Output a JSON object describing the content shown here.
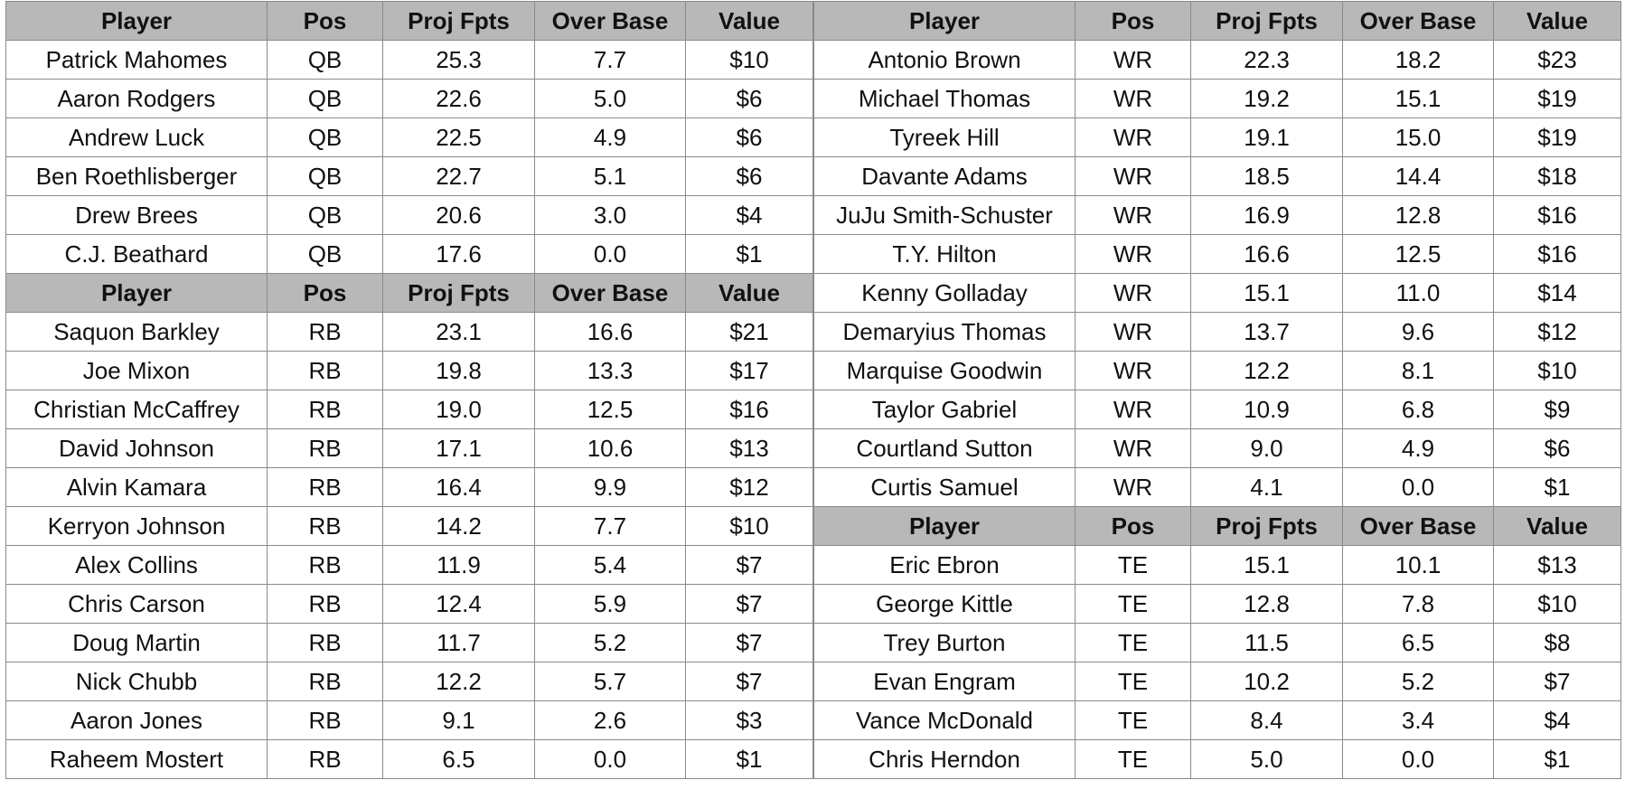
{
  "panels": [
    {
      "sections": [
        {
          "columns": [
            "Player",
            "Pos",
            "Proj Fpts",
            "Over Base",
            "Value"
          ],
          "rows": [
            [
              "Patrick Mahomes",
              "QB",
              "25.3",
              "7.7",
              "$10"
            ],
            [
              "Aaron Rodgers",
              "QB",
              "22.6",
              "5.0",
              "$6"
            ],
            [
              "Andrew Luck",
              "QB",
              "22.5",
              "4.9",
              "$6"
            ],
            [
              "Ben Roethlisberger",
              "QB",
              "22.7",
              "5.1",
              "$6"
            ],
            [
              "Drew Brees",
              "QB",
              "20.6",
              "3.0",
              "$4"
            ],
            [
              "C.J. Beathard",
              "QB",
              "17.6",
              "0.0",
              "$1"
            ]
          ]
        },
        {
          "columns": [
            "Player",
            "Pos",
            "Proj Fpts",
            "Over Base",
            "Value"
          ],
          "rows": [
            [
              "Saquon Barkley",
              "RB",
              "23.1",
              "16.6",
              "$21"
            ],
            [
              "Joe Mixon",
              "RB",
              "19.8",
              "13.3",
              "$17"
            ],
            [
              "Christian McCaffrey",
              "RB",
              "19.0",
              "12.5",
              "$16"
            ],
            [
              "David Johnson",
              "RB",
              "17.1",
              "10.6",
              "$13"
            ],
            [
              "Alvin Kamara",
              "RB",
              "16.4",
              "9.9",
              "$12"
            ],
            [
              "Kerryon Johnson",
              "RB",
              "14.2",
              "7.7",
              "$10"
            ],
            [
              "Alex Collins",
              "RB",
              "11.9",
              "5.4",
              "$7"
            ],
            [
              "Chris Carson",
              "RB",
              "12.4",
              "5.9",
              "$7"
            ],
            [
              "Doug Martin",
              "RB",
              "11.7",
              "5.2",
              "$7"
            ],
            [
              "Nick Chubb",
              "RB",
              "12.2",
              "5.7",
              "$7"
            ],
            [
              "Aaron Jones",
              "RB",
              "9.1",
              "2.6",
              "$3"
            ],
            [
              "Raheem Mostert",
              "RB",
              "6.5",
              "0.0",
              "$1"
            ]
          ]
        }
      ]
    },
    {
      "sections": [
        {
          "columns": [
            "Player",
            "Pos",
            "Proj Fpts",
            "Over Base",
            "Value"
          ],
          "rows": [
            [
              "Antonio Brown",
              "WR",
              "22.3",
              "18.2",
              "$23"
            ],
            [
              "Michael Thomas",
              "WR",
              "19.2",
              "15.1",
              "$19"
            ],
            [
              "Tyreek Hill",
              "WR",
              "19.1",
              "15.0",
              "$19"
            ],
            [
              "Davante Adams",
              "WR",
              "18.5",
              "14.4",
              "$18"
            ],
            [
              "JuJu Smith-Schuster",
              "WR",
              "16.9",
              "12.8",
              "$16"
            ],
            [
              "T.Y. Hilton",
              "WR",
              "16.6",
              "12.5",
              "$16"
            ],
            [
              "Kenny Golladay",
              "WR",
              "15.1",
              "11.0",
              "$14"
            ],
            [
              "Demaryius Thomas",
              "WR",
              "13.7",
              "9.6",
              "$12"
            ],
            [
              "Marquise Goodwin",
              "WR",
              "12.2",
              "8.1",
              "$10"
            ],
            [
              "Taylor Gabriel",
              "WR",
              "10.9",
              "6.8",
              "$9"
            ],
            [
              "Courtland Sutton",
              "WR",
              "9.0",
              "4.9",
              "$6"
            ],
            [
              "Curtis Samuel",
              "WR",
              "4.1",
              "0.0",
              "$1"
            ]
          ]
        },
        {
          "columns": [
            "Player",
            "Pos",
            "Proj Fpts",
            "Over Base",
            "Value"
          ],
          "rows": [
            [
              "Eric Ebron",
              "TE",
              "15.1",
              "10.1",
              "$13"
            ],
            [
              "George Kittle",
              "TE",
              "12.8",
              "7.8",
              "$10"
            ],
            [
              "Trey Burton",
              "TE",
              "11.5",
              "6.5",
              "$8"
            ],
            [
              "Evan Engram",
              "TE",
              "10.2",
              "5.2",
              "$7"
            ],
            [
              "Vance McDonald",
              "TE",
              "8.4",
              "3.4",
              "$4"
            ],
            [
              "Chris Herndon",
              "TE",
              "5.0",
              "0.0",
              "$1"
            ]
          ]
        }
      ]
    }
  ]
}
